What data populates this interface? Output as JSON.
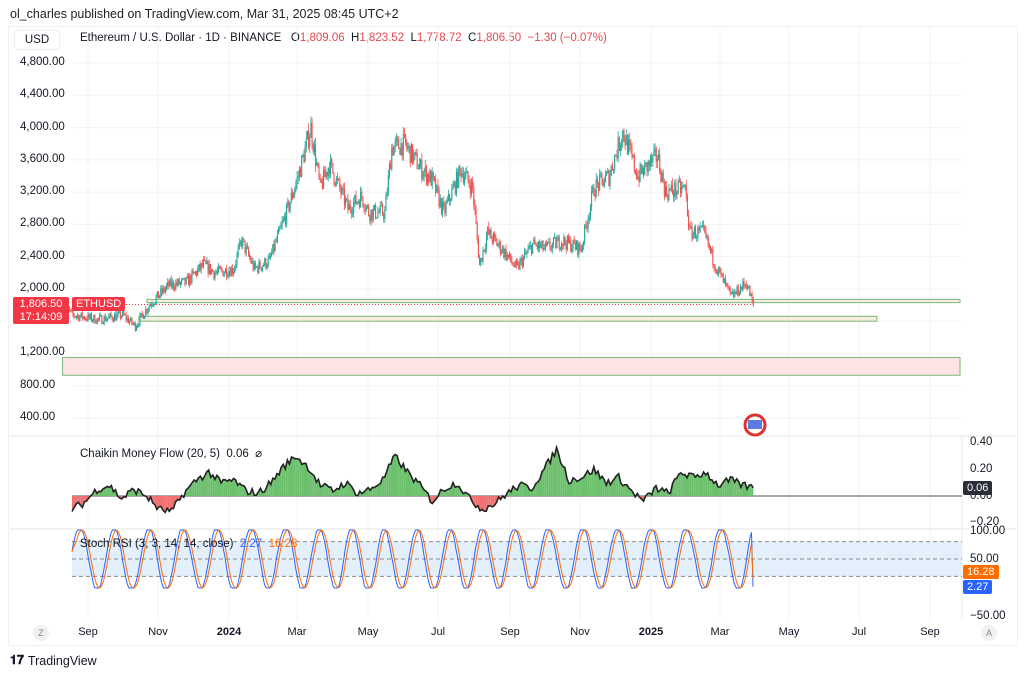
{
  "publisher": "ol_charles published on TradingView.com, Mar 31, 2025 08:45 UTC+2",
  "currency": "USD",
  "legend": {
    "symbol": "Ethereum / U.S. Dollar · 1D · BINANCE",
    "o_label": "O",
    "o": "1,809.06",
    "h_label": "H",
    "h": "1,823.52",
    "l_label": "L",
    "l": "1,778.72",
    "c_label": "C",
    "c": "1,806.50",
    "change": "−1.30 (−0.07%)"
  },
  "price_axis": [
    "4,800.00",
    "4,400.00",
    "4,000.00",
    "3,600.00",
    "3,200.00",
    "2,800.00",
    "2,400.00",
    "2,000.00",
    "1,200.00",
    "800.00",
    "400.00"
  ],
  "last_price": {
    "price": "1,806.50",
    "countdown": "17:14:09",
    "symbol": "ETHUSD"
  },
  "colors": {
    "up": "#26a69a",
    "down": "#ef5350",
    "tag": "#f23645",
    "cmf_up": "#6cbf6c",
    "cmf_down": "#f07070",
    "stoch_k": "#2962ff",
    "stoch_d": "#ff6d00"
  },
  "cmf": {
    "title": "Chaikin Money Flow (20, 5)",
    "value": "0.06",
    "icon": "hide-icon",
    "axis": [
      "0.40",
      "0.20",
      "0.00",
      "−0.20"
    ]
  },
  "stoch": {
    "title": "Stoch RSI (3, 3, 14, 14, close)",
    "k": "2.27",
    "d": "16.28",
    "axis": [
      "100.00",
      "50.00",
      "−50.00"
    ]
  },
  "time_axis": [
    {
      "l": "Sep",
      "b": false
    },
    {
      "l": "Nov",
      "b": false
    },
    {
      "l": "2024",
      "b": true
    },
    {
      "l": "Mar",
      "b": false
    },
    {
      "l": "May",
      "b": false
    },
    {
      "l": "Jul",
      "b": false
    },
    {
      "l": "Sep",
      "b": false
    },
    {
      "l": "Nov",
      "b": false
    },
    {
      "l": "2025",
      "b": true
    },
    {
      "l": "Mar",
      "b": false
    },
    {
      "l": "May",
      "b": false
    },
    {
      "l": "Jul",
      "b": false
    },
    {
      "l": "Sep",
      "b": false
    }
  ],
  "zoom_btn": "Z",
  "auto_btn": "A",
  "brand": "TradingView",
  "chart_data": {
    "type": "candlestick",
    "series": "ETHUSD daily close (approx.)",
    "keypoints": [
      [
        "2023-08-10",
        1850
      ],
      [
        "2023-08-18",
        1680
      ],
      [
        "2023-09-10",
        1620
      ],
      [
        "2023-10-01",
        1680
      ],
      [
        "2023-10-12",
        1540
      ],
      [
        "2023-10-24",
        1800
      ],
      [
        "2023-11-10",
        2050
      ],
      [
        "2023-11-25",
        2080
      ],
      [
        "2023-12-10",
        2300
      ],
      [
        "2023-12-20",
        2200
      ],
      [
        "2024-01-05",
        2250
      ],
      [
        "2024-01-12",
        2600
      ],
      [
        "2024-01-23",
        2250
      ],
      [
        "2024-02-05",
        2350
      ],
      [
        "2024-02-20",
        2950
      ],
      [
        "2024-03-01",
        3400
      ],
      [
        "2024-03-12",
        4000
      ],
      [
        "2024-03-20",
        3250
      ],
      [
        "2024-03-28",
        3550
      ],
      [
        "2024-04-13",
        3000
      ],
      [
        "2024-04-25",
        3150
      ],
      [
        "2024-05-01",
        2950
      ],
      [
        "2024-05-15",
        2950
      ],
      [
        "2024-05-21",
        3750
      ],
      [
        "2024-06-01",
        3800
      ],
      [
        "2024-06-15",
        3500
      ],
      [
        "2024-06-25",
        3350
      ],
      [
        "2024-07-05",
        2950
      ],
      [
        "2024-07-20",
        3480
      ],
      [
        "2024-07-30",
        3250
      ],
      [
        "2024-08-05",
        2300
      ],
      [
        "2024-08-12",
        2700
      ],
      [
        "2024-08-27",
        2450
      ],
      [
        "2024-09-06",
        2250
      ],
      [
        "2024-09-20",
        2550
      ],
      [
        "2024-10-01",
        2500
      ],
      [
        "2024-10-15",
        2600
      ],
      [
        "2024-11-01",
        2500
      ],
      [
        "2024-11-12",
        3250
      ],
      [
        "2024-11-25",
        3400
      ],
      [
        "2024-12-07",
        3950
      ],
      [
        "2024-12-20",
        3400
      ],
      [
        "2025-01-06",
        3650
      ],
      [
        "2025-01-13",
        3200
      ],
      [
        "2025-01-30",
        3250
      ],
      [
        "2025-02-03",
        2700
      ],
      [
        "2025-02-15",
        2700
      ],
      [
        "2025-02-25",
        2300
      ],
      [
        "2025-03-11",
        1900
      ],
      [
        "2025-03-24",
        2080
      ],
      [
        "2025-03-30",
        1806
      ]
    ],
    "zones": [
      {
        "top": 1870,
        "bottom": 1830,
        "from": "2023-10-22",
        "to": "2025-09-25"
      },
      {
        "top": 1660,
        "bottom": 1600,
        "from": "2023-10-15",
        "to": "2025-07-15"
      },
      {
        "top": 1150,
        "bottom": 930,
        "from": "2023-08-10",
        "to": "2025-09-25"
      }
    ],
    "cmf_values": [
      -0.1,
      -0.05,
      0.05,
      0.08,
      -0.02,
      0.05,
      0.0,
      -0.1,
      -0.12,
      0.02,
      0.12,
      0.18,
      0.1,
      0.12,
      0.04,
      0.02,
      0.1,
      0.22,
      0.3,
      0.22,
      0.08,
      0.04,
      0.1,
      0.02,
      0.05,
      0.12,
      0.3,
      0.18,
      0.08,
      -0.04,
      0.06,
      0.1,
      -0.02,
      -0.1,
      -0.06,
      0.02,
      0.08,
      0.06,
      0.2,
      0.35,
      0.12,
      0.14,
      0.2,
      0.1,
      0.14,
      0.04,
      -0.04,
      0.06,
      0.02,
      0.18,
      0.14,
      0.18,
      0.08,
      0.12,
      0.08,
      0.06
    ],
    "cmf_range": [
      -0.2,
      0.4
    ],
    "stoch_range": [
      -50,
      100
    ],
    "stoch_bands": [
      80,
      50,
      20
    ]
  }
}
